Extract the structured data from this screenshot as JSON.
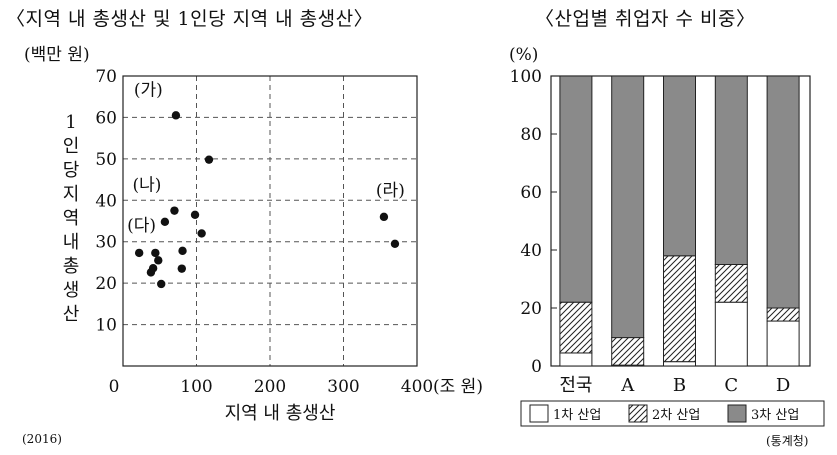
{
  "chart_data": [
    {
      "type": "scatter",
      "title": "〈지역 내 총생산 및 1인당 지역 내 총생산〉",
      "xlabel": "지역 내 총생산",
      "ylabel": "1인당 지역 내 총생산",
      "y_unit": "(백만 원)",
      "x_unit": "(조 원)",
      "xlim": [
        0,
        400
      ],
      "ylim": [
        0,
        70
      ],
      "x_ticks": [
        0,
        100,
        200,
        300,
        400
      ],
      "y_ticks": [
        10,
        20,
        30,
        40,
        50,
        60,
        70
      ],
      "grid": true,
      "points": [
        {
          "x": 72,
          "y": 60.5,
          "label": "(가)"
        },
        {
          "x": 117,
          "y": 49.8,
          "label": ""
        },
        {
          "x": 70,
          "y": 37.5,
          "label": "(나)"
        },
        {
          "x": 98,
          "y": 36.5,
          "label": ""
        },
        {
          "x": 57,
          "y": 34.8,
          "label": ""
        },
        {
          "x": 107,
          "y": 32.0,
          "label": ""
        },
        {
          "x": 355,
          "y": 36.0,
          "label": "(라)"
        },
        {
          "x": 370,
          "y": 29.5,
          "label": ""
        },
        {
          "x": 22,
          "y": 27.3,
          "label": "(다)"
        },
        {
          "x": 44,
          "y": 27.3,
          "label": ""
        },
        {
          "x": 81,
          "y": 27.8,
          "label": ""
        },
        {
          "x": 48,
          "y": 25.5,
          "label": ""
        },
        {
          "x": 41,
          "y": 23.6,
          "label": ""
        },
        {
          "x": 38,
          "y": 22.6,
          "label": ""
        },
        {
          "x": 80,
          "y": 23.5,
          "label": ""
        },
        {
          "x": 52,
          "y": 19.8,
          "label": ""
        }
      ]
    },
    {
      "type": "bar",
      "stacked": true,
      "title": "〈산업별 취업자 수 비중〉",
      "y_unit": "(%)",
      "ylim": [
        0,
        100
      ],
      "y_ticks": [
        0,
        20,
        40,
        60,
        80,
        100
      ],
      "categories": [
        "전국",
        "A",
        "B",
        "C",
        "D"
      ],
      "series": [
        {
          "name": "1차 산업",
          "pattern": "white",
          "values": [
            4.5,
            0.3,
            1.5,
            22.0,
            15.5
          ]
        },
        {
          "name": "2차 산업",
          "pattern": "hatch",
          "values": [
            17.5,
            9.5,
            36.5,
            13.0,
            4.5
          ]
        },
        {
          "name": "3차 산업",
          "pattern": "gray",
          "values": [
            78.0,
            90.2,
            62.0,
            65.0,
            80.0
          ]
        }
      ],
      "legend_position": "bottom",
      "colors": {
        "white": "#ffffff",
        "gray": "#8a8a8a",
        "stroke": "#222222"
      }
    }
  ],
  "footer": {
    "year": "(2016)",
    "source": "(통계청)"
  }
}
